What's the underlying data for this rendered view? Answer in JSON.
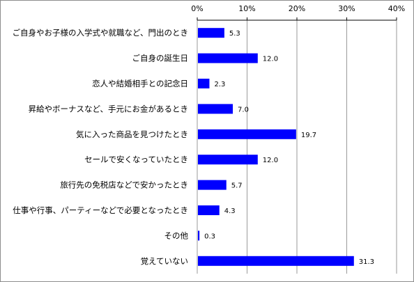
{
  "chart_data": {
    "type": "bar",
    "orientation": "horizontal",
    "categories": [
      "ご自身やお子様の入学式や就職など、門出のとき",
      "ご自身の誕生日",
      "恋人や結婚相手との記念日",
      "昇給やボーナスなど、手元にお金があるとき",
      "気に入った商品を見つけたとき",
      "セールで安くなっていたとき",
      "旅行先の免税店などで安かったとき",
      "仕事や行事、パーティーなどで必要となったとき",
      "その他",
      "覚えていない"
    ],
    "values": [
      5.3,
      12.0,
      2.3,
      7.0,
      19.7,
      12.0,
      5.7,
      4.3,
      0.3,
      31.3
    ],
    "value_labels": [
      "5.3",
      "12.0",
      "2.3",
      "7.0",
      "19.7",
      "12.0",
      "5.7",
      "4.3",
      "0.3",
      "31.3"
    ],
    "xlim": [
      0,
      40
    ],
    "ticks": [
      0,
      10,
      20,
      30,
      40
    ],
    "tick_labels": [
      "0%",
      "10%",
      "20%",
      "30%",
      "40%"
    ],
    "axis_position": "top",
    "grid": true,
    "legend": "none",
    "bar_color": "#0000ff",
    "grid_color": "#9a9a9a"
  }
}
